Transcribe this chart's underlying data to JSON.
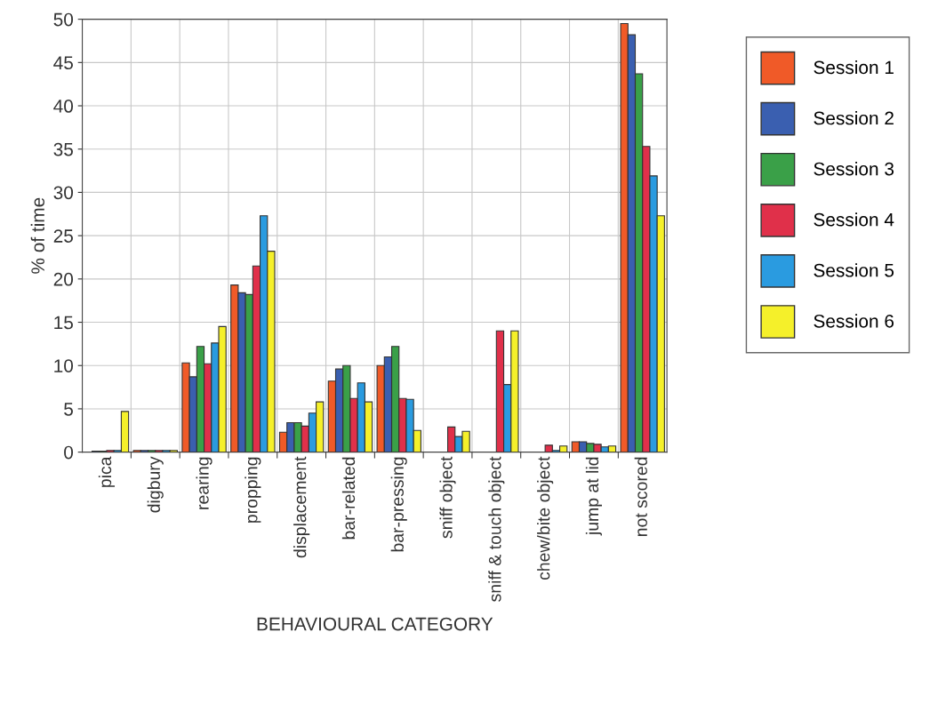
{
  "chart_data": {
    "type": "bar",
    "xlabel": "BEHAVIOURAL CATEGORY",
    "ylabel": "% of time",
    "categories": [
      "pica",
      "digbury",
      "rearing",
      "propping",
      "displacement",
      "bar-related",
      "bar-pressing",
      "sniff object",
      "sniff & touch object",
      "chew/bite object",
      "jump at lid",
      "not scored"
    ],
    "series": [
      {
        "name": "Session 1",
        "color": "#f05a28",
        "values": [
          0,
          0.2,
          10.3,
          19.3,
          2.3,
          8.2,
          10.0,
          0,
          0,
          0,
          1.2,
          49.5
        ]
      },
      {
        "name": "Session 2",
        "color": "#3a5fb0",
        "values": [
          0.1,
          0.2,
          8.7,
          18.4,
          3.4,
          9.6,
          11.0,
          0,
          0,
          0,
          1.2,
          48.2
        ]
      },
      {
        "name": "Session 3",
        "color": "#3aa048",
        "values": [
          0.1,
          0.2,
          12.2,
          18.2,
          3.4,
          10.0,
          12.2,
          0,
          0,
          0,
          1.0,
          43.7
        ]
      },
      {
        "name": "Session 4",
        "color": "#e0304a",
        "values": [
          0.2,
          0.2,
          10.2,
          21.5,
          3.0,
          6.2,
          6.2,
          2.9,
          14.0,
          0.8,
          0.9,
          35.3
        ]
      },
      {
        "name": "Session 5",
        "color": "#2a9be0",
        "values": [
          0.2,
          0.2,
          12.6,
          27.3,
          4.5,
          8.0,
          6.1,
          1.8,
          7.8,
          0.2,
          0.6,
          31.9
        ]
      },
      {
        "name": "Session 6",
        "color": "#f5f02a",
        "values": [
          4.7,
          0.2,
          14.5,
          23.2,
          5.8,
          5.8,
          2.5,
          2.4,
          14.0,
          0.7,
          0.7,
          27.3
        ]
      }
    ],
    "ylim": [
      0,
      50
    ],
    "yticks": [
      0,
      5,
      10,
      15,
      20,
      25,
      30,
      35,
      40,
      45,
      50
    ],
    "grid": true,
    "legend": "top right"
  }
}
